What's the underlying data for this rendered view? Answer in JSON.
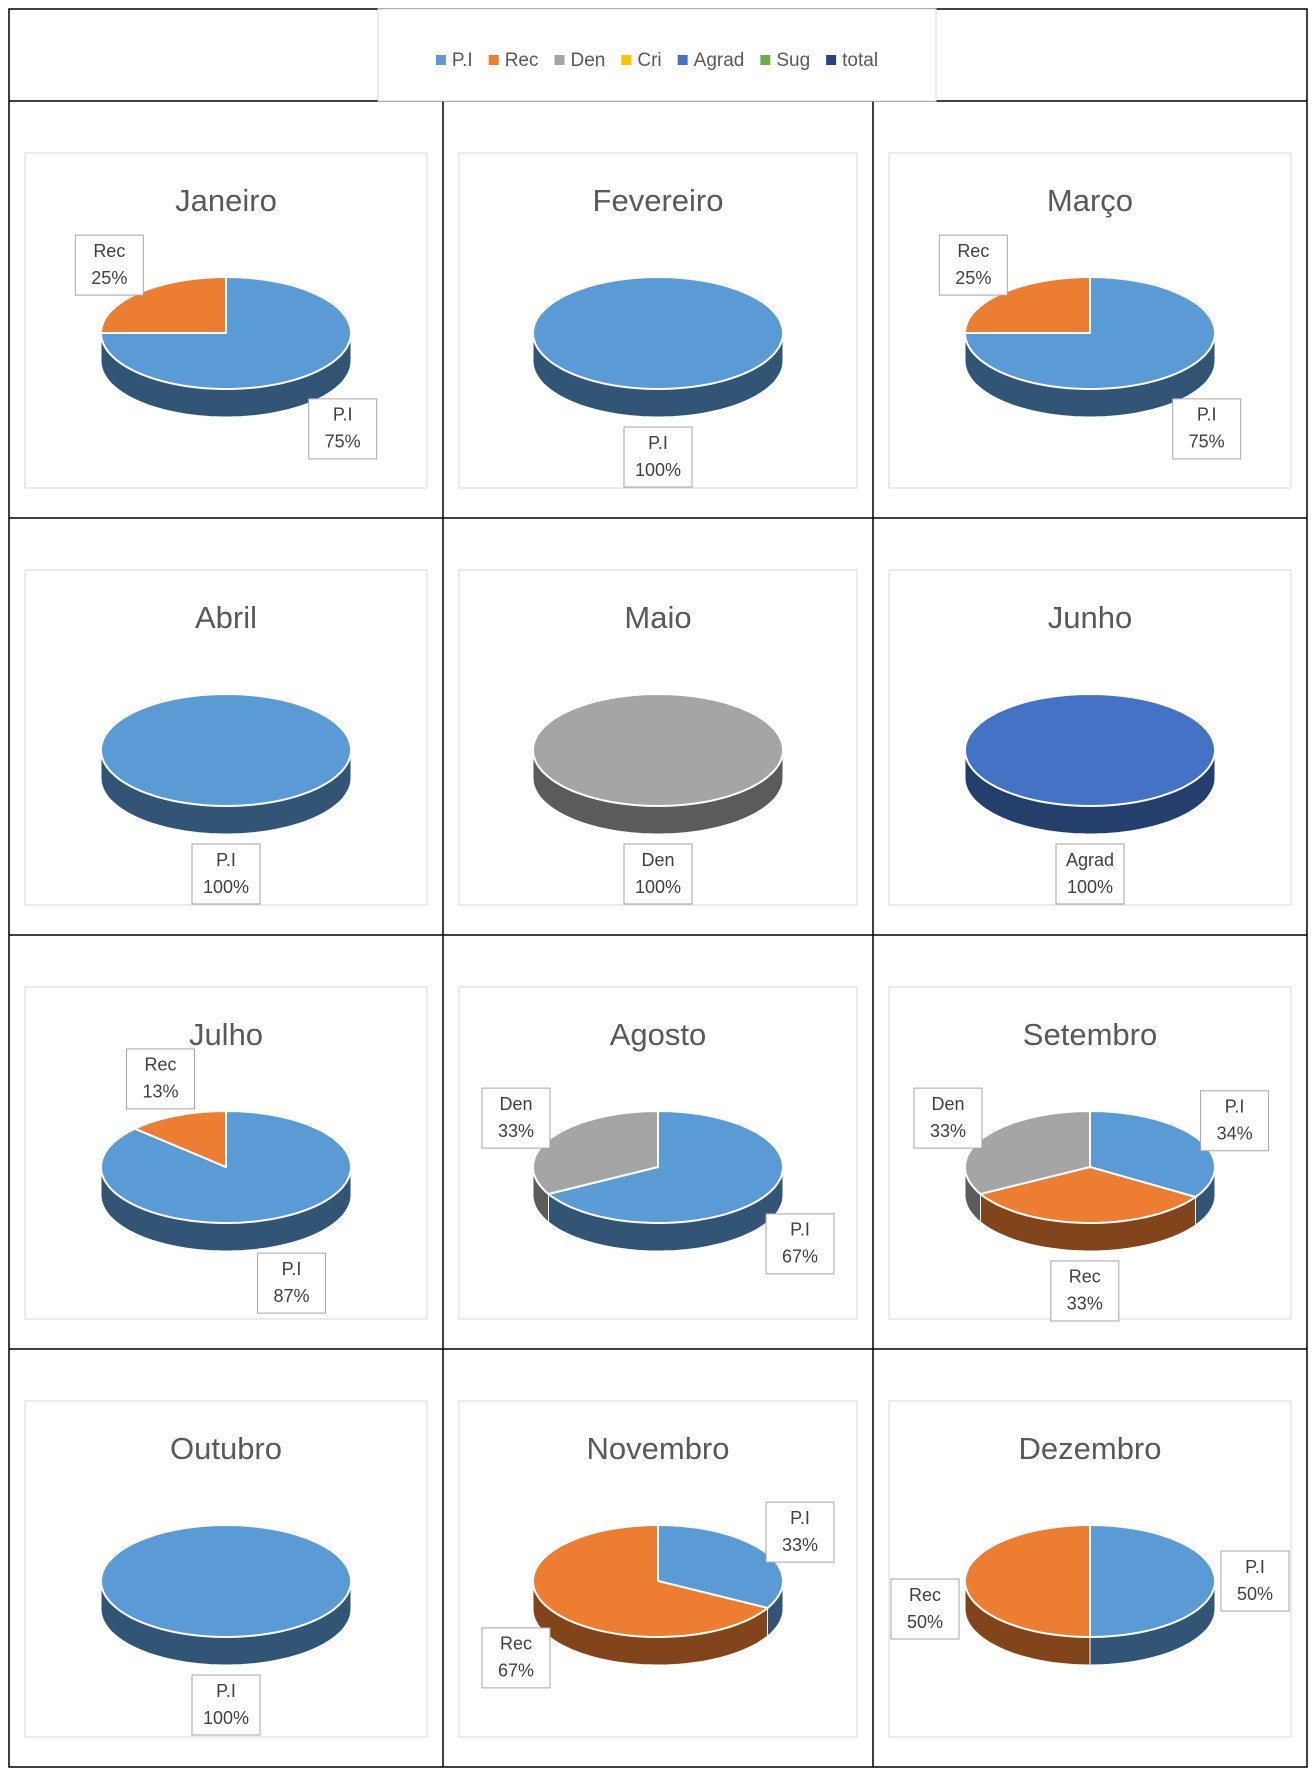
{
  "legend": {
    "items": [
      {
        "name": "P.I",
        "color": "#5b9bd5"
      },
      {
        "name": "Rec",
        "color": "#ed7d31"
      },
      {
        "name": "Den",
        "color": "#a5a5a5"
      },
      {
        "name": "Cri",
        "color": "#ffc000"
      },
      {
        "name": "Agrad",
        "color": "#4472c4"
      },
      {
        "name": "Sug",
        "color": "#70ad47"
      },
      {
        "name": "total",
        "color": "#264478"
      }
    ]
  },
  "chart_data": [
    {
      "type": "pie",
      "title": "Janeiro",
      "categories": [
        "P.I",
        "Rec"
      ],
      "values": [
        75,
        25
      ],
      "value_labels": [
        "75%",
        "25%"
      ],
      "colors": [
        "#5b9bd5",
        "#ed7d31"
      ]
    },
    {
      "type": "pie",
      "title": "Fevereiro",
      "categories": [
        "P.I"
      ],
      "values": [
        100
      ],
      "value_labels": [
        "100%"
      ],
      "colors": [
        "#5b9bd5"
      ]
    },
    {
      "type": "pie",
      "title": "Março",
      "categories": [
        "P.I",
        "Rec"
      ],
      "values": [
        75,
        25
      ],
      "value_labels": [
        "75%",
        "25%"
      ],
      "colors": [
        "#5b9bd5",
        "#ed7d31"
      ]
    },
    {
      "type": "pie",
      "title": "Abril",
      "categories": [
        "P.I"
      ],
      "values": [
        100
      ],
      "value_labels": [
        "100%"
      ],
      "colors": [
        "#5b9bd5"
      ]
    },
    {
      "type": "pie",
      "title": "Maio",
      "categories": [
        "Den"
      ],
      "values": [
        100
      ],
      "value_labels": [
        "100%"
      ],
      "colors": [
        "#a5a5a5"
      ]
    },
    {
      "type": "pie",
      "title": "Junho",
      "categories": [
        "Agrad"
      ],
      "values": [
        100
      ],
      "value_labels": [
        "100%"
      ],
      "colors": [
        "#4472c4"
      ]
    },
    {
      "type": "pie",
      "title": "Julho",
      "categories": [
        "P.I",
        "Rec"
      ],
      "values": [
        87,
        13
      ],
      "value_labels": [
        "87%",
        "13%"
      ],
      "colors": [
        "#5b9bd5",
        "#ed7d31"
      ]
    },
    {
      "type": "pie",
      "title": "Agosto",
      "categories": [
        "P.I",
        "Den"
      ],
      "values": [
        67,
        33
      ],
      "value_labels": [
        "67%",
        "33%"
      ],
      "colors": [
        "#5b9bd5",
        "#a5a5a5"
      ]
    },
    {
      "type": "pie",
      "title": "Setembro",
      "categories": [
        "P.I",
        "Rec",
        "Den"
      ],
      "values": [
        34,
        33,
        33
      ],
      "value_labels": [
        "34%",
        "33%",
        "33%"
      ],
      "colors": [
        "#5b9bd5",
        "#ed7d31",
        "#a5a5a5"
      ]
    },
    {
      "type": "pie",
      "title": "Outubro",
      "categories": [
        "P.I"
      ],
      "values": [
        100
      ],
      "value_labels": [
        "100%"
      ],
      "colors": [
        "#5b9bd5"
      ]
    },
    {
      "type": "pie",
      "title": "Novembro",
      "categories": [
        "P.I",
        "Rec"
      ],
      "values": [
        33,
        67
      ],
      "value_labels": [
        "33%",
        "67%"
      ],
      "colors": [
        "#5b9bd5",
        "#ed7d31"
      ]
    },
    {
      "type": "pie",
      "title": "Dezembro",
      "categories": [
        "P.I",
        "Rec"
      ],
      "values": [
        50,
        50
      ],
      "value_labels": [
        "50%",
        "50%"
      ],
      "colors": [
        "#5b9bd5",
        "#ed7d31"
      ]
    }
  ]
}
